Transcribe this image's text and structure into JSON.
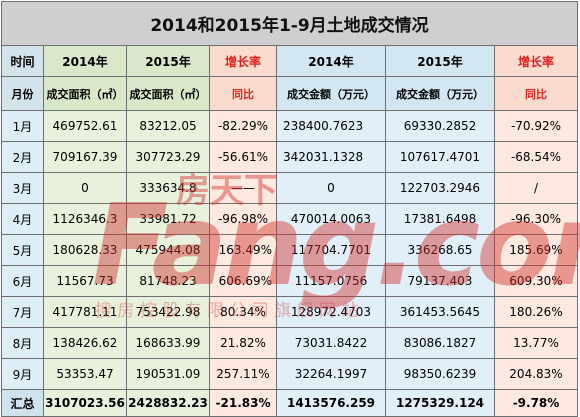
{
  "title": "2014和2015年1-9月土地成交情况",
  "header_row1": {
    "c1": "时间",
    "c2": "2014年",
    "c3": "2015年",
    "c4": "增长率",
    "c5": "2014年",
    "c6": "2015年",
    "c7": "增长率"
  },
  "header_row2": {
    "c1": "月份",
    "c2": "成交面积（㎡）",
    "c3": "成交面积（㎡）",
    "c4": "同比",
    "c5": "成交金额（万元）",
    "c6": "成交金额（万元）",
    "c7": "同比"
  },
  "rows": [
    {
      "month": "1月",
      "area2014": "469752.61",
      "area2015": "83212.05",
      "area_rate": "-82.29%",
      "amt2014": "238400.7623",
      "amt2015": "69330.2852",
      "amt_rate": "-70.92%"
    },
    {
      "month": "2月",
      "area2014": "709167.39",
      "area2015": "307723.29",
      "area_rate": "-56.61%",
      "amt2014": "342031.1328",
      "amt2015": "107617.4701",
      "amt_rate": "-68.54%"
    },
    {
      "month": "3月",
      "area2014": "0",
      "area2015": "333634.8",
      "area_rate": "——",
      "amt2014": "0",
      "amt2015": "122703.2946",
      "amt_rate": "/"
    },
    {
      "month": "4月",
      "area2014": "1126346.3",
      "area2015": "33981.72",
      "area_rate": "-96.98%",
      "amt2014": "470014.0063",
      "amt2015": "17381.6498",
      "amt_rate": "-96.30%"
    },
    {
      "month": "5月",
      "area2014": "180628.33",
      "area2015": "475944.08",
      "area_rate": "163.49%",
      "amt2014": "117704.7701",
      "amt2015": "336268.65",
      "amt_rate": "185.69%"
    },
    {
      "month": "6月",
      "area2014": "11567.73",
      "area2015": "81748.23",
      "area_rate": "606.69%",
      "amt2014": "11157.0756",
      "amt2015": "79137.403",
      "amt_rate": "609.30%"
    },
    {
      "month": "7月",
      "area2014": "417781.11",
      "area2015": "753422.98",
      "area_rate": "80.34%",
      "amt2014": "128972.4703",
      "amt2015": "361453.5645",
      "amt_rate": "180.26%"
    },
    {
      "month": "8月",
      "area2014": "138426.62",
      "area2015": "168633.99",
      "area_rate": "21.82%",
      "amt2014": "73031.8422",
      "amt2015": "83086.1827",
      "amt_rate": "13.77%"
    },
    {
      "month": "9月",
      "area2014": "53353.47",
      "area2015": "190531.09",
      "area_rate": "257.11%",
      "amt2014": "32264.1997",
      "amt2015": "98350.6239",
      "amt_rate": "204.83%"
    }
  ],
  "total": {
    "label": "汇总",
    "area2014": "3107023.56",
    "area2015": "2428832.23",
    "area_rate": "-21.83%",
    "amt2014": "1413576.259",
    "amt2015": "1275329.124",
    "amt_rate": "-9.78%"
  },
  "watermark": {
    "brand_cn": "房天下",
    "brand_en": "Fang.com",
    "subtitle": "搜 房 控 股 有 限 公 司 旗 舰 网 站"
  },
  "colors": {
    "negative_text": "#e02222",
    "watermark": "#d1312f"
  }
}
